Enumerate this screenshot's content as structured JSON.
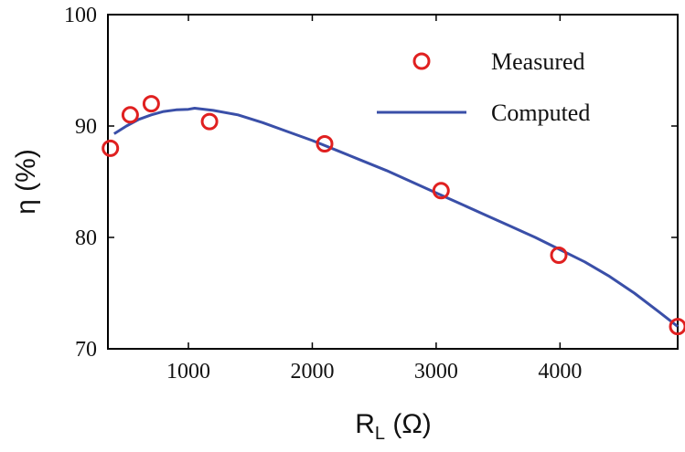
{
  "chart_data": {
    "type": "line",
    "title": "",
    "xlabel": {
      "main": "R",
      "sub": "L",
      "unit": " (Ω)"
    },
    "ylabel": "η (%)",
    "xlim": [
      350,
      4950
    ],
    "ylim": [
      70,
      100
    ],
    "xticks": [
      1000,
      2000,
      3000,
      4000
    ],
    "yticks": [
      70,
      80,
      90,
      100
    ],
    "xtick_labels": [
      "1000",
      "2000",
      "3000",
      "4000"
    ],
    "ytick_labels": [
      "70",
      "80",
      "90",
      "100"
    ],
    "grid": false,
    "legend_position": "top-right",
    "series": [
      {
        "name": "Measured",
        "kind": "scatter",
        "marker": "circle",
        "color": "#e02020",
        "x": [
          370,
          530,
          700,
          1170,
          2100,
          3040,
          3990,
          4950
        ],
        "y": [
          88.0,
          91.0,
          92.0,
          90.4,
          88.4,
          84.2,
          78.4,
          72.0
        ]
      },
      {
        "name": "Computed",
        "kind": "line",
        "color": "#3a4fa8",
        "x": [
          400,
          500,
          600,
          700,
          800,
          900,
          1000,
          1050,
          1200,
          1400,
          1600,
          1800,
          2000,
          2200,
          2400,
          2600,
          2800,
          3000,
          3200,
          3400,
          3600,
          3800,
          4000,
          4200,
          4400,
          4600,
          4800,
          4950
        ],
        "y": [
          89.3,
          90.0,
          90.6,
          91.0,
          91.3,
          91.45,
          91.5,
          91.6,
          91.4,
          91.0,
          90.3,
          89.5,
          88.7,
          87.8,
          86.9,
          86.0,
          85.0,
          84.0,
          83.0,
          82.0,
          81.0,
          80.0,
          78.9,
          77.8,
          76.5,
          75.0,
          73.3,
          72.0
        ]
      }
    ]
  }
}
